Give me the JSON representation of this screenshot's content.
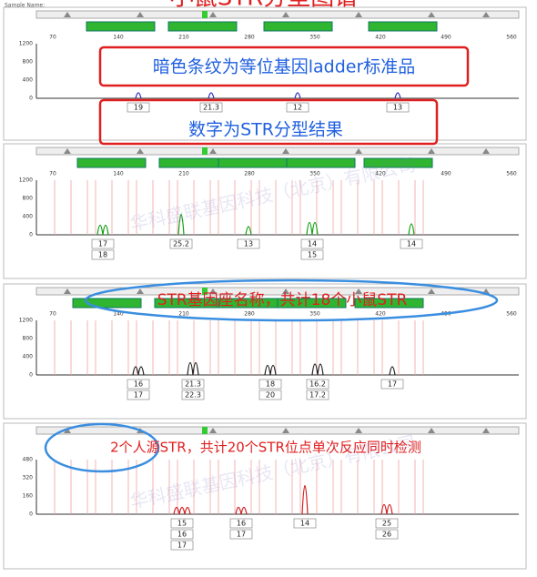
{
  "header": {
    "title": "小鼠STR分型图谱",
    "sample_label": "Sample Name:"
  },
  "panels": [
    {
      "x_ticks": [
        "70",
        "140",
        "210",
        "280",
        "350",
        "420",
        "490",
        "560"
      ],
      "y_ticks": [
        "1200",
        "800",
        "400",
        "0"
      ],
      "alleles": [
        [
          "19"
        ],
        [
          "21.3"
        ],
        [
          "12"
        ],
        [
          "13"
        ]
      ]
    },
    {
      "x_ticks": [
        "70",
        "140",
        "210",
        "280",
        "350",
        "420",
        "490",
        "560"
      ],
      "y_ticks": [
        "1200",
        "800",
        "400",
        "0"
      ],
      "alleles": [
        [
          "17",
          "18"
        ],
        [
          "25.2"
        ],
        [
          "13"
        ],
        [
          "14",
          "15"
        ],
        [
          "14"
        ]
      ]
    },
    {
      "x_ticks": [
        "70",
        "140",
        "210",
        "280",
        "350",
        "420",
        "490",
        "560"
      ],
      "y_ticks": [
        "1200",
        "800",
        "400",
        "0"
      ],
      "alleles": [
        [
          "16",
          "17"
        ],
        [
          "21.3",
          "22.3"
        ],
        [
          "18",
          "20"
        ],
        [
          "16.2",
          "17.2"
        ],
        [
          "17"
        ]
      ]
    },
    {
      "x_ticks": [],
      "y_ticks": [
        "480",
        "320",
        "160",
        "0"
      ],
      "alleles": [
        [
          "15",
          "16",
          "17"
        ],
        [
          "16",
          "17"
        ],
        [
          "14"
        ],
        [
          "25",
          "26"
        ]
      ]
    }
  ],
  "annotations": {
    "ladder_note": "暗色条纹为等位基因ladder标准品",
    "result_note": "数字为STR分型结果",
    "locus_note": "STR基因座名称，共计18个小鼠STR",
    "human_note": "2个人源STR，共计20个STR位点单次反应同时检测"
  },
  "watermark": "华科盛联基因科技（北京）有限公司"
}
